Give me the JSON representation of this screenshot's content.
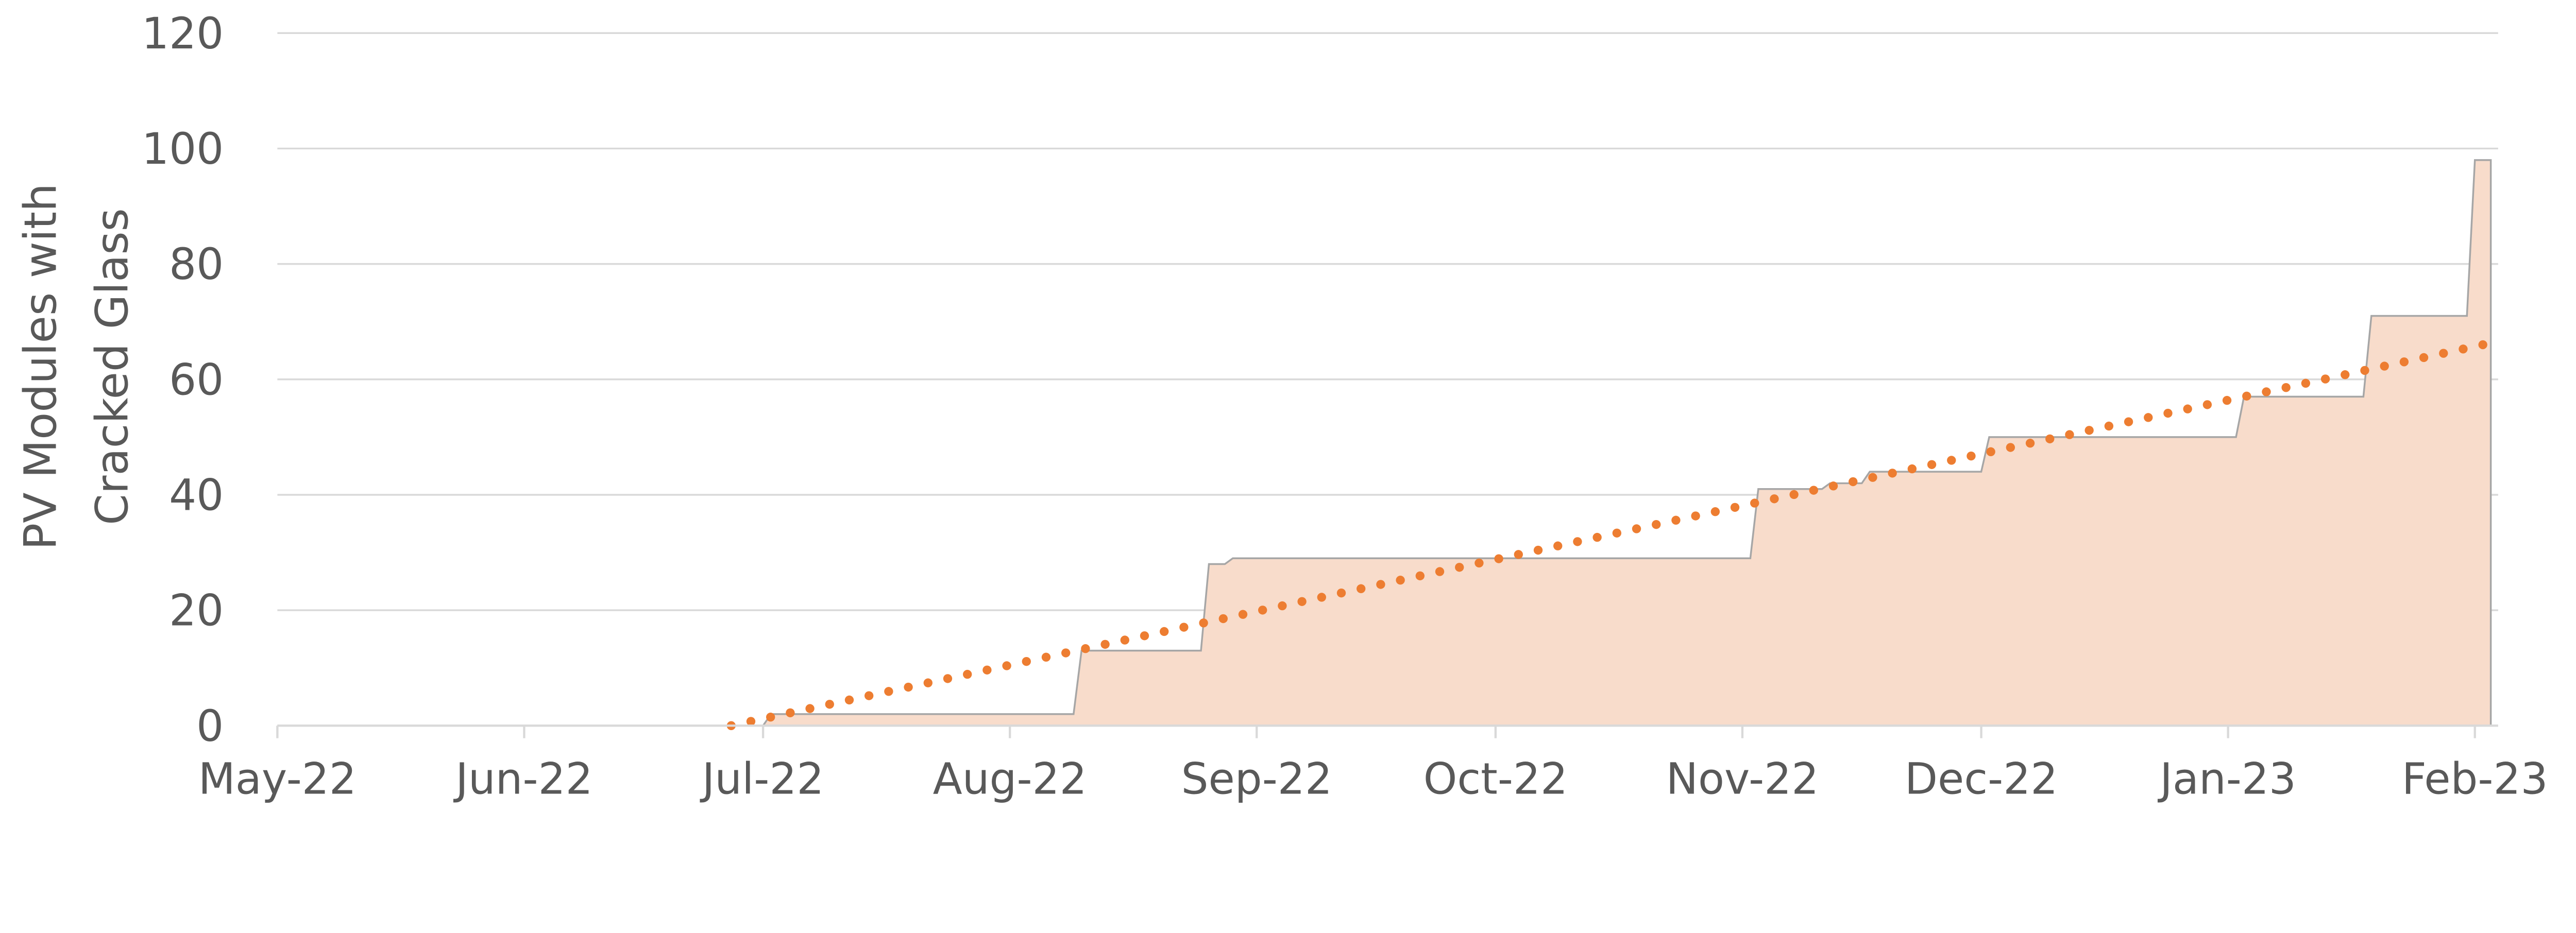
{
  "chart_data": {
    "type": "area",
    "title": "",
    "xlabel": "",
    "ylabel": [
      "PV Modules with",
      "Cracked Glass"
    ],
    "ylim": [
      0,
      120
    ],
    "yticks": [
      "0",
      "20",
      "40",
      "60",
      "80",
      "100",
      "120"
    ],
    "xlim": [
      "2022-05-01",
      "2023-02-05"
    ],
    "xticks": [
      {
        "date": "2022-05-01",
        "label": "May-22"
      },
      {
        "date": "2022-06-01",
        "label": "Jun-22"
      },
      {
        "date": "2022-07-01",
        "label": "Jul-22"
      },
      {
        "date": "2022-08-01",
        "label": "Aug-22"
      },
      {
        "date": "2022-09-01",
        "label": "Sep-22"
      },
      {
        "date": "2022-10-01",
        "label": "Oct-22"
      },
      {
        "date": "2022-11-01",
        "label": "Nov-22"
      },
      {
        "date": "2022-12-01",
        "label": "Dec-22"
      },
      {
        "date": "2023-01-01",
        "label": "Jan-23"
      },
      {
        "date": "2023-02-01",
        "label": "Feb-23"
      }
    ],
    "grid": "horizontal",
    "legend": "none",
    "series": [
      {
        "kind": "step-area",
        "color": "#F8DCCB",
        "line_color": "#A6A6A6",
        "points": [
          [
            "2022-05-01",
            0
          ],
          [
            "2022-07-01",
            0
          ],
          [
            "2022-07-02",
            2
          ],
          [
            "2022-08-09",
            2
          ],
          [
            "2022-08-10",
            13
          ],
          [
            "2022-08-25",
            13
          ],
          [
            "2022-08-26",
            28
          ],
          [
            "2022-08-28",
            28
          ],
          [
            "2022-08-29",
            29
          ],
          [
            "2022-11-02",
            29
          ],
          [
            "2022-11-03",
            41
          ],
          [
            "2022-11-11",
            41
          ],
          [
            "2022-11-12",
            42
          ],
          [
            "2022-11-16",
            42
          ],
          [
            "2022-11-17",
            44
          ],
          [
            "2022-12-01",
            44
          ],
          [
            "2022-12-02",
            50
          ],
          [
            "2023-01-02",
            50
          ],
          [
            "2023-01-03",
            57
          ],
          [
            "2023-01-18",
            57
          ],
          [
            "2023-01-19",
            71
          ],
          [
            "2023-01-31",
            71
          ],
          [
            "2023-02-01",
            98
          ],
          [
            "2023-02-03",
            98
          ]
        ]
      },
      {
        "kind": "linear-trendline",
        "style": "dotted",
        "color": "#ED7D31",
        "points": [
          [
            "2022-06-27",
            0
          ],
          [
            "2023-02-02",
            66
          ]
        ]
      }
    ]
  }
}
